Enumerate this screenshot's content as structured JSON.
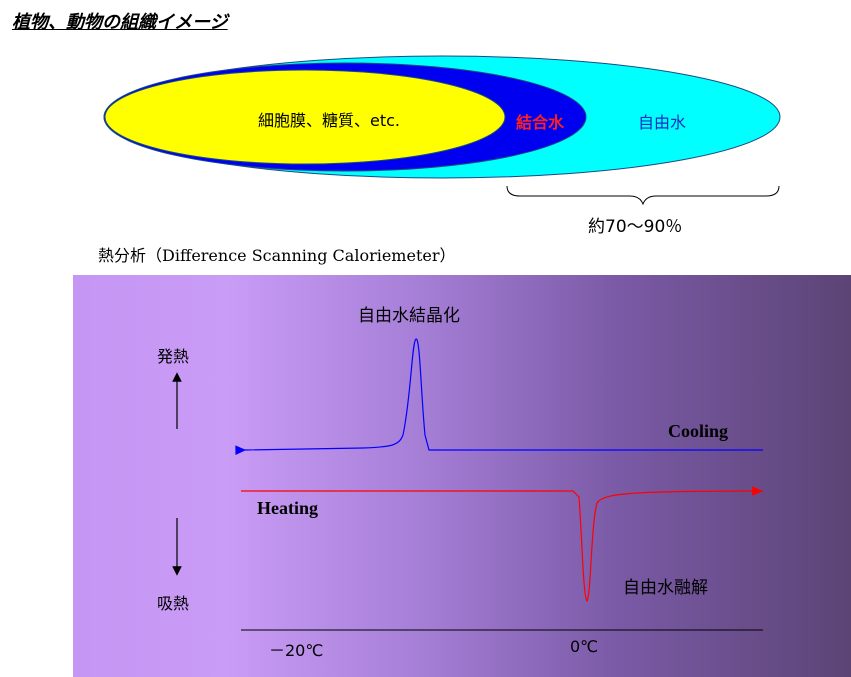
{
  "title": "植物、動物の組織イメージ",
  "tissue": {
    "inner_label": "細胞膜、糖質、etc.",
    "bound_water_label": "結合水",
    "free_water_label": "自由水",
    "fraction_label": "約70～90％",
    "colors": {
      "inner": "#ffff00",
      "bound": "#0000f0",
      "free": "#00ffff"
    }
  },
  "dsc": {
    "title": "熱分析（Difference Scanning Caloriemeter）",
    "exo_label": "発熱",
    "endo_label": "吸熱",
    "peak_label": "自由水結晶化",
    "dip_label": "自由水融解",
    "cooling_label": "Cooling",
    "heating_label": "Heating",
    "tick_minus20": "－20℃",
    "tick_zero": "0℃",
    "colors": {
      "cooling": "#0000ff",
      "heating": "#ff0000"
    }
  }
}
